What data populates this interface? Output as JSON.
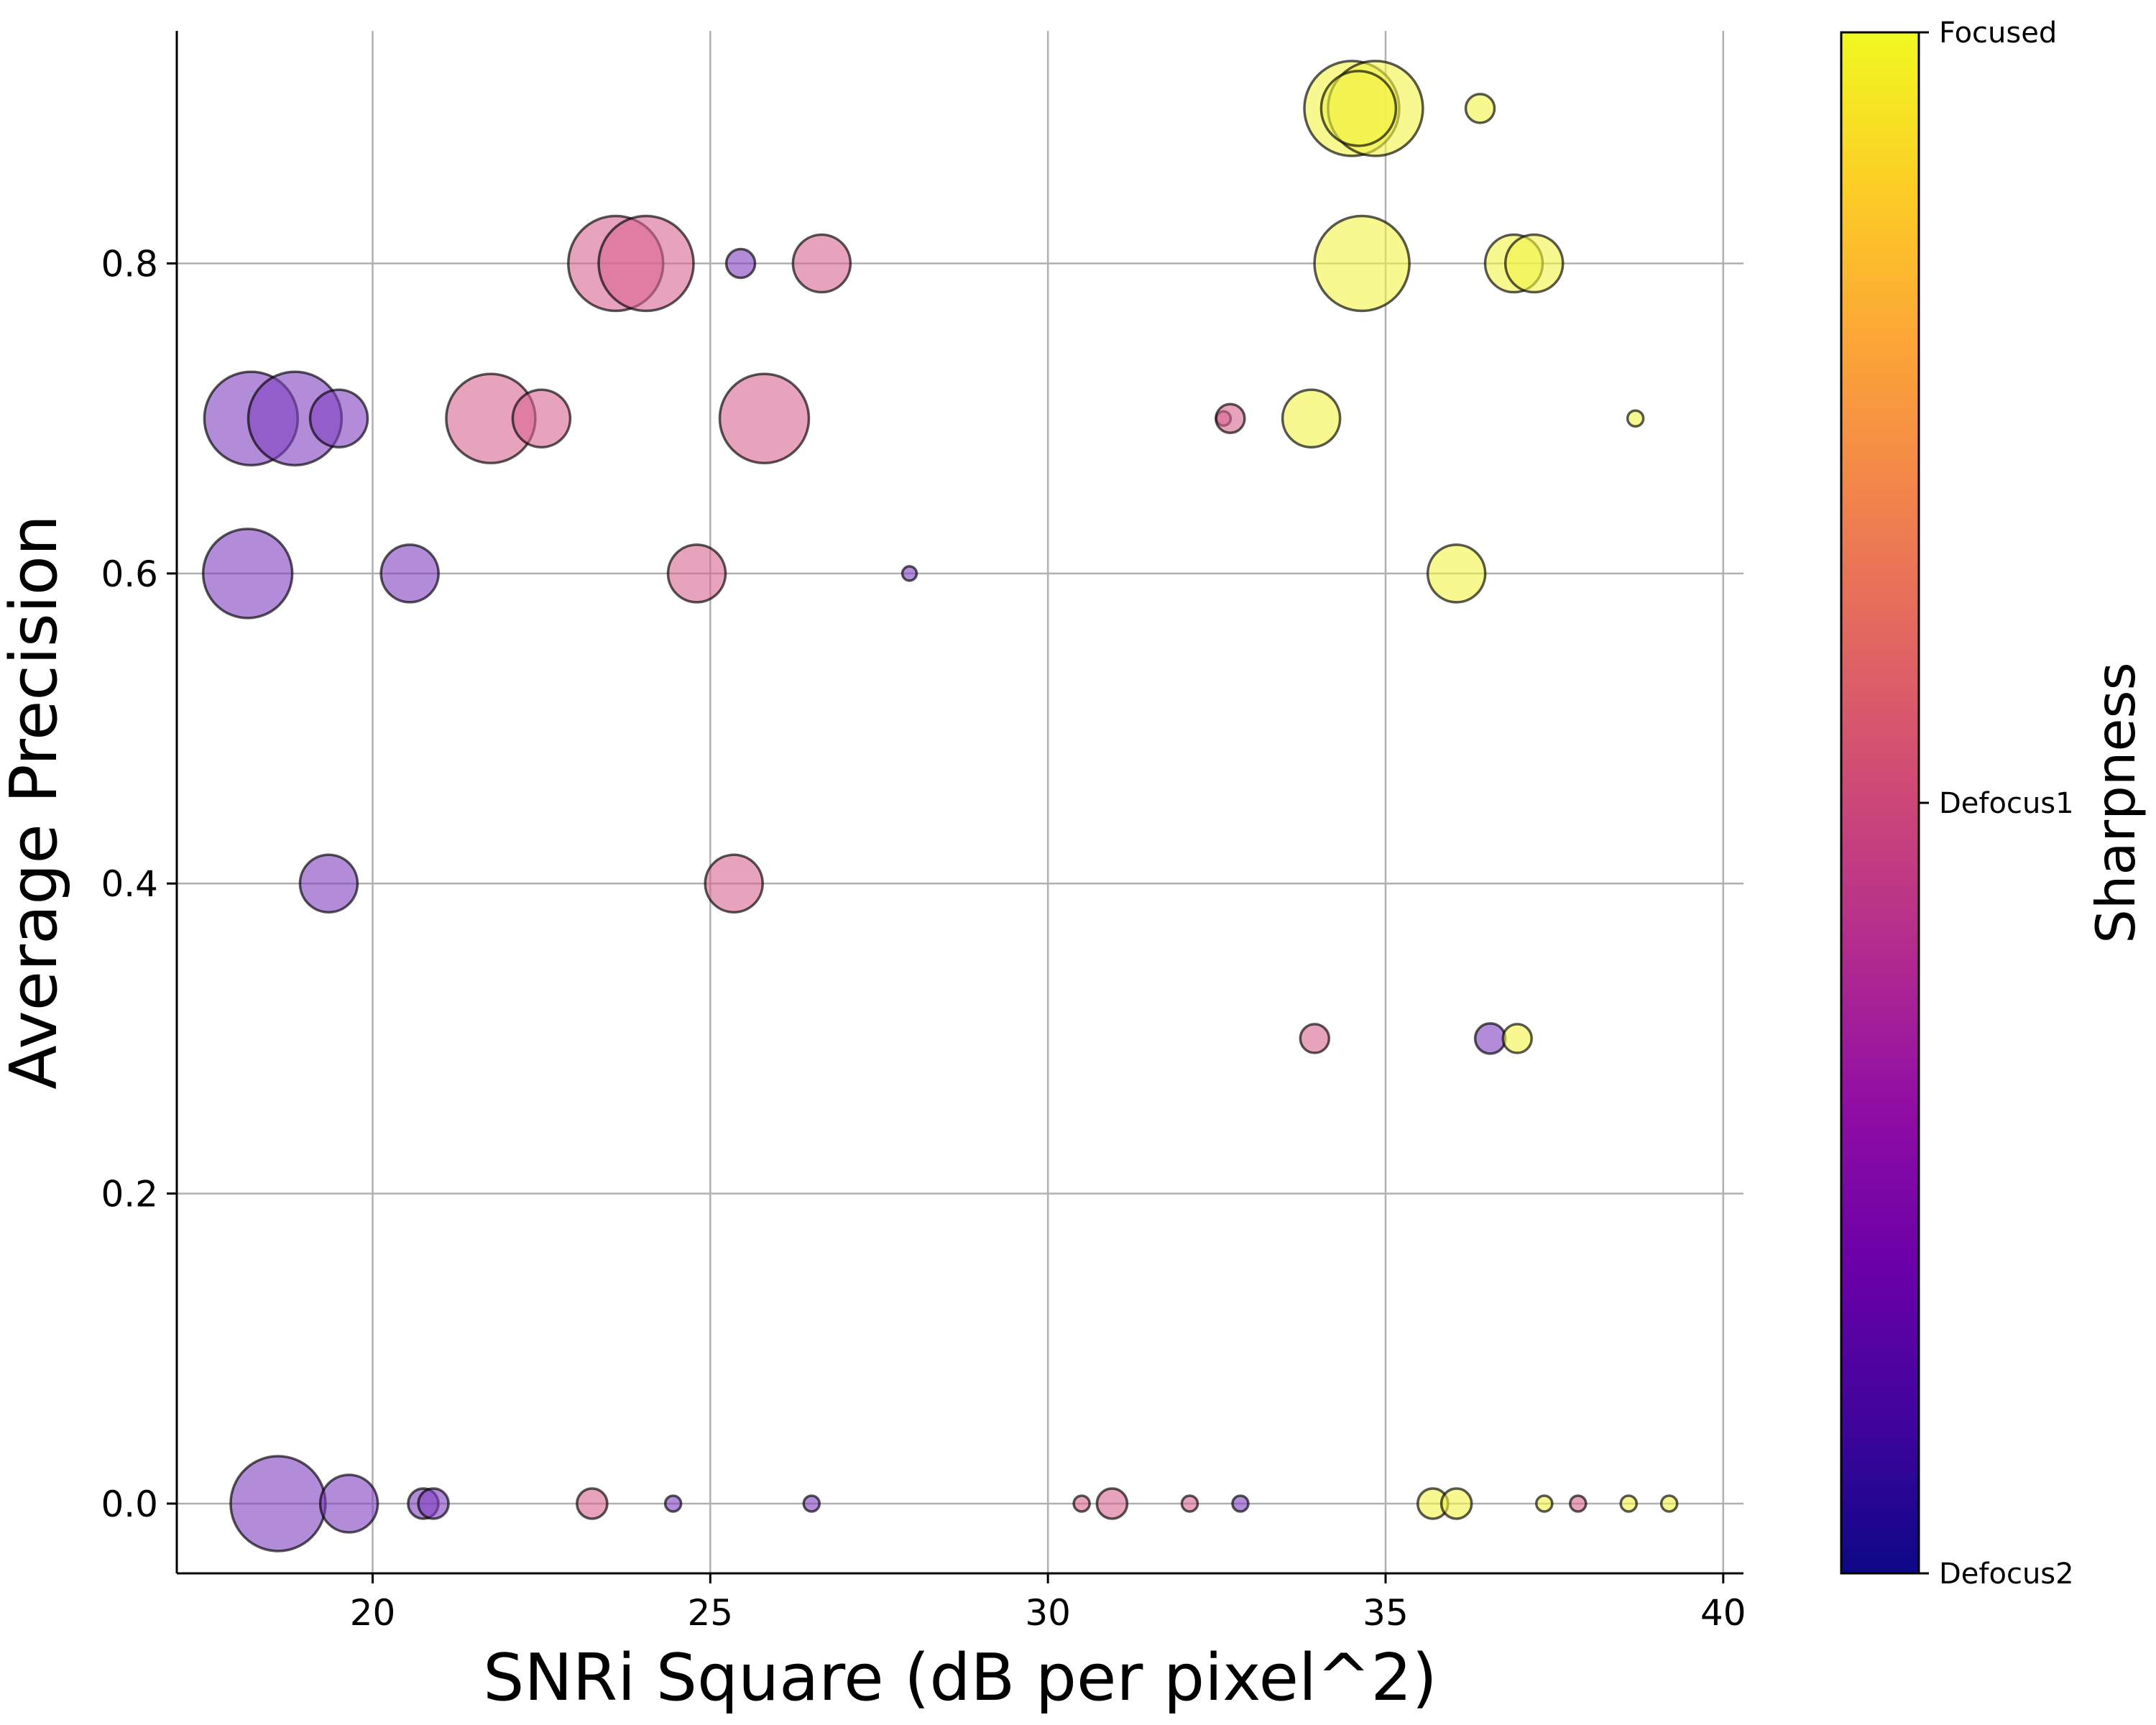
{
  "chart_data": {
    "type": "scatter",
    "title": "",
    "xlabel": "SNRi Square (dB per pixel^2)",
    "ylabel": "Average Precision",
    "xlim": [
      17.1,
      40.3
    ],
    "ylim": [
      -0.045,
      0.95
    ],
    "x_ticks": [
      "20",
      "25",
      "30",
      "35",
      "40"
    ],
    "y_ticks": [
      "0.0",
      "0.2",
      "0.4",
      "0.6",
      "0.8"
    ],
    "grid": true,
    "size_encoding": "bubble area",
    "colorbar": {
      "title": "Sharpness",
      "colormap": "plasma",
      "tick_labels": [
        "Defocus2",
        "Defocus1",
        "Focused"
      ],
      "colors": {
        "Defocus2": "#0d0887",
        "Defocus1": "#cc4778",
        "Focused": "#f0f921"
      }
    },
    "series": [
      {
        "class": "Defocus2",
        "color": "#7e3fc0",
        "points": [
          {
            "x": 18.2,
            "y": 0.7,
            "s": 65
          },
          {
            "x": 18.85,
            "y": 0.7,
            "s": 65
          },
          {
            "x": 19.5,
            "y": 0.7,
            "s": 40
          },
          {
            "x": 25.45,
            "y": 0.8,
            "s": 20
          },
          {
            "x": 18.15,
            "y": 0.6,
            "s": 62
          },
          {
            "x": 20.55,
            "y": 0.6,
            "s": 40
          },
          {
            "x": 27.95,
            "y": 0.6,
            "s": 10
          },
          {
            "x": 19.35,
            "y": 0.4,
            "s": 40
          },
          {
            "x": 36.55,
            "y": 0.3,
            "s": 21
          },
          {
            "x": 18.6,
            "y": 0.0,
            "s": 66
          },
          {
            "x": 19.65,
            "y": 0.0,
            "s": 40
          },
          {
            "x": 20.75,
            "y": 0.0,
            "s": 21
          },
          {
            "x": 20.9,
            "y": 0.0,
            "s": 21
          },
          {
            "x": 24.45,
            "y": 0.0,
            "s": 11
          },
          {
            "x": 26.5,
            "y": 0.0,
            "s": 11
          },
          {
            "x": 32.85,
            "y": 0.0,
            "s": 11
          }
        ]
      },
      {
        "class": "Defocus1",
        "color": "#d8668f",
        "points": [
          {
            "x": 23.6,
            "y": 0.8,
            "s": 66
          },
          {
            "x": 24.05,
            "y": 0.8,
            "s": 66
          },
          {
            "x": 26.65,
            "y": 0.8,
            "s": 40
          },
          {
            "x": 21.75,
            "y": 0.7,
            "s": 62
          },
          {
            "x": 22.5,
            "y": 0.7,
            "s": 40
          },
          {
            "x": 25.8,
            "y": 0.7,
            "s": 62
          },
          {
            "x": 32.6,
            "y": 0.7,
            "s": 10
          },
          {
            "x": 32.7,
            "y": 0.7,
            "s": 20
          },
          {
            "x": 24.8,
            "y": 0.6,
            "s": 40
          },
          {
            "x": 25.35,
            "y": 0.4,
            "s": 40
          },
          {
            "x": 33.95,
            "y": 0.3,
            "s": 20
          },
          {
            "x": 23.25,
            "y": 0.0,
            "s": 21
          },
          {
            "x": 30.5,
            "y": 0.0,
            "s": 11
          },
          {
            "x": 30.95,
            "y": 0.0,
            "s": 21
          },
          {
            "x": 32.1,
            "y": 0.0,
            "s": 11
          },
          {
            "x": 37.85,
            "y": 0.0,
            "s": 11
          }
        ]
      },
      {
        "class": "Focused",
        "color": "#f1f446",
        "points": [
          {
            "x": 34.5,
            "y": 0.9,
            "s": 66
          },
          {
            "x": 34.85,
            "y": 0.9,
            "s": 66
          },
          {
            "x": 34.6,
            "y": 0.9,
            "s": 52
          },
          {
            "x": 36.4,
            "y": 0.9,
            "s": 20
          },
          {
            "x": 34.65,
            "y": 0.8,
            "s": 66
          },
          {
            "x": 36.9,
            "y": 0.8,
            "s": 40
          },
          {
            "x": 37.2,
            "y": 0.8,
            "s": 40
          },
          {
            "x": 33.9,
            "y": 0.7,
            "s": 40
          },
          {
            "x": 38.7,
            "y": 0.7,
            "s": 11
          },
          {
            "x": 36.05,
            "y": 0.6,
            "s": 40
          },
          {
            "x": 36.95,
            "y": 0.3,
            "s": 20
          },
          {
            "x": 35.7,
            "y": 0.0,
            "s": 21
          },
          {
            "x": 36.05,
            "y": 0.0,
            "s": 21
          },
          {
            "x": 37.35,
            "y": 0.0,
            "s": 11
          },
          {
            "x": 38.6,
            "y": 0.0,
            "s": 11
          },
          {
            "x": 39.2,
            "y": 0.0,
            "s": 11
          }
        ]
      }
    ]
  }
}
